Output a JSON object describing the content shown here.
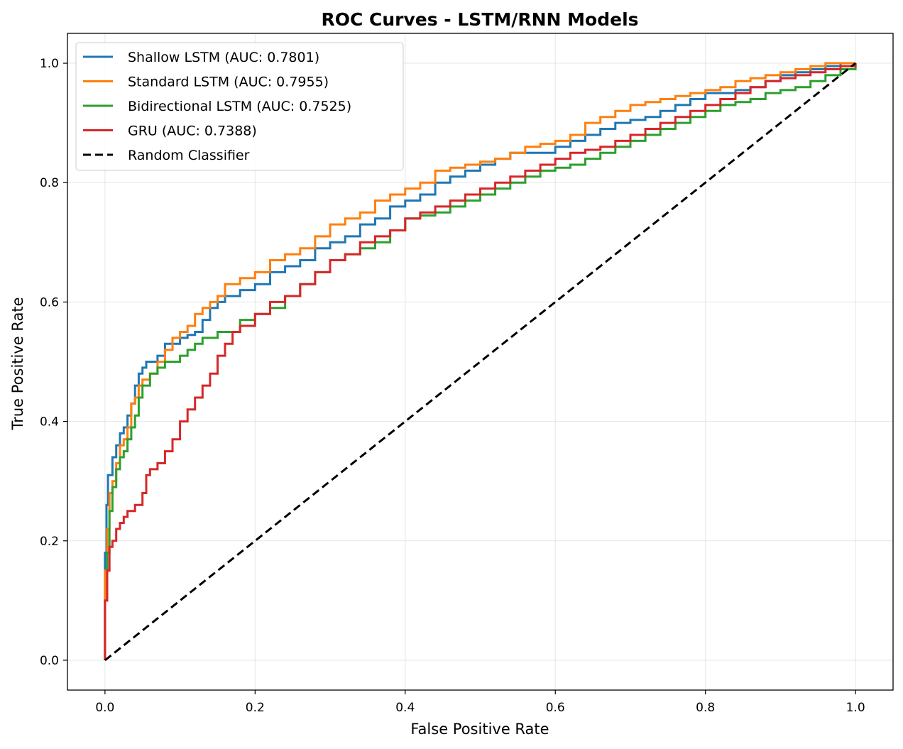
{
  "chart_data": {
    "type": "line",
    "title": "ROC Curves - LSTM/RNN Models",
    "xlabel": "False Positive Rate",
    "ylabel": "True Positive Rate",
    "xlim": [
      -0.05,
      1.05
    ],
    "ylim": [
      -0.05,
      1.05
    ],
    "xticks": [
      0.0,
      0.2,
      0.4,
      0.6,
      0.8,
      1.0
    ],
    "yticks": [
      0.0,
      0.2,
      0.4,
      0.6,
      0.8,
      1.0
    ],
    "xtick_labels": [
      "0.0",
      "0.2",
      "0.4",
      "0.6",
      "0.8",
      "1.0"
    ],
    "ytick_labels": [
      "0.0",
      "0.2",
      "0.4",
      "0.6",
      "0.8",
      "1.0"
    ],
    "grid": true,
    "legend_position": "top-left",
    "series": [
      {
        "name": "Shallow LSTM (AUC: 0.7801)",
        "color": "#1f77b4",
        "x": [
          0.0,
          0.0,
          0.002,
          0.004,
          0.006,
          0.01,
          0.015,
          0.02,
          0.025,
          0.03,
          0.035,
          0.04,
          0.045,
          0.05,
          0.055,
          0.06,
          0.07,
          0.08,
          0.09,
          0.1,
          0.11,
          0.12,
          0.13,
          0.14,
          0.15,
          0.16,
          0.18,
          0.2,
          0.22,
          0.24,
          0.26,
          0.28,
          0.3,
          0.32,
          0.34,
          0.36,
          0.38,
          0.4,
          0.42,
          0.44,
          0.46,
          0.48,
          0.5,
          0.52,
          0.54,
          0.56,
          0.58,
          0.6,
          0.62,
          0.64,
          0.66,
          0.68,
          0.7,
          0.72,
          0.74,
          0.76,
          0.78,
          0.8,
          0.82,
          0.84,
          0.86,
          0.88,
          0.9,
          0.92,
          0.94,
          0.96,
          0.98,
          1.0
        ],
        "y": [
          0.0,
          0.18,
          0.26,
          0.31,
          0.31,
          0.34,
          0.36,
          0.38,
          0.39,
          0.41,
          0.43,
          0.46,
          0.48,
          0.49,
          0.5,
          0.5,
          0.51,
          0.53,
          0.53,
          0.54,
          0.545,
          0.55,
          0.57,
          0.59,
          0.6,
          0.61,
          0.62,
          0.63,
          0.65,
          0.66,
          0.67,
          0.69,
          0.7,
          0.71,
          0.73,
          0.74,
          0.76,
          0.77,
          0.78,
          0.8,
          0.81,
          0.82,
          0.83,
          0.84,
          0.85,
          0.85,
          0.85,
          0.86,
          0.87,
          0.88,
          0.89,
          0.9,
          0.905,
          0.91,
          0.92,
          0.93,
          0.94,
          0.95,
          0.95,
          0.955,
          0.96,
          0.97,
          0.98,
          0.985,
          0.99,
          0.995,
          1.0,
          1.0
        ]
      },
      {
        "name": "Standard LSTM (AUC: 0.7955)",
        "color": "#ff7f0e",
        "x": [
          0.0,
          0.0,
          0.003,
          0.006,
          0.01,
          0.015,
          0.02,
          0.025,
          0.03,
          0.035,
          0.04,
          0.045,
          0.05,
          0.06,
          0.07,
          0.08,
          0.09,
          0.1,
          0.11,
          0.12,
          0.13,
          0.14,
          0.15,
          0.16,
          0.18,
          0.2,
          0.22,
          0.24,
          0.26,
          0.28,
          0.3,
          0.32,
          0.34,
          0.36,
          0.38,
          0.4,
          0.42,
          0.44,
          0.46,
          0.48,
          0.5,
          0.52,
          0.54,
          0.56,
          0.58,
          0.6,
          0.62,
          0.64,
          0.66,
          0.68,
          0.7,
          0.72,
          0.74,
          0.76,
          0.78,
          0.8,
          0.82,
          0.84,
          0.86,
          0.88,
          0.9,
          0.92,
          0.94,
          0.96,
          0.98,
          1.0
        ],
        "y": [
          0.0,
          0.15,
          0.22,
          0.28,
          0.3,
          0.33,
          0.36,
          0.37,
          0.39,
          0.43,
          0.44,
          0.46,
          0.47,
          0.48,
          0.5,
          0.52,
          0.54,
          0.55,
          0.56,
          0.58,
          0.59,
          0.6,
          0.61,
          0.63,
          0.64,
          0.65,
          0.67,
          0.68,
          0.69,
          0.71,
          0.73,
          0.74,
          0.75,
          0.77,
          0.78,
          0.79,
          0.8,
          0.82,
          0.825,
          0.83,
          0.835,
          0.84,
          0.85,
          0.86,
          0.865,
          0.87,
          0.88,
          0.9,
          0.91,
          0.92,
          0.93,
          0.935,
          0.94,
          0.945,
          0.95,
          0.955,
          0.96,
          0.97,
          0.975,
          0.98,
          0.985,
          0.99,
          0.995,
          1.0,
          1.0,
          1.0
        ]
      },
      {
        "name": "Bidirectional LSTM (AUC: 0.7525)",
        "color": "#2ca02c",
        "x": [
          0.0,
          0.0,
          0.003,
          0.006,
          0.01,
          0.015,
          0.02,
          0.025,
          0.03,
          0.035,
          0.04,
          0.045,
          0.05,
          0.06,
          0.07,
          0.08,
          0.09,
          0.1,
          0.11,
          0.12,
          0.13,
          0.14,
          0.15,
          0.16,
          0.18,
          0.2,
          0.22,
          0.24,
          0.26,
          0.28,
          0.3,
          0.32,
          0.34,
          0.36,
          0.38,
          0.4,
          0.42,
          0.44,
          0.46,
          0.48,
          0.5,
          0.52,
          0.54,
          0.56,
          0.58,
          0.6,
          0.62,
          0.64,
          0.66,
          0.68,
          0.7,
          0.72,
          0.74,
          0.76,
          0.78,
          0.8,
          0.82,
          0.84,
          0.86,
          0.88,
          0.9,
          0.92,
          0.94,
          0.96,
          0.98,
          1.0
        ],
        "y": [
          0.0,
          0.1,
          0.18,
          0.25,
          0.29,
          0.32,
          0.34,
          0.35,
          0.37,
          0.39,
          0.41,
          0.44,
          0.46,
          0.48,
          0.49,
          0.5,
          0.5,
          0.51,
          0.52,
          0.53,
          0.54,
          0.54,
          0.55,
          0.55,
          0.57,
          0.58,
          0.59,
          0.61,
          0.63,
          0.65,
          0.67,
          0.68,
          0.69,
          0.7,
          0.72,
          0.74,
          0.745,
          0.75,
          0.76,
          0.77,
          0.78,
          0.79,
          0.8,
          0.81,
          0.82,
          0.825,
          0.83,
          0.84,
          0.85,
          0.86,
          0.87,
          0.88,
          0.89,
          0.9,
          0.91,
          0.92,
          0.93,
          0.935,
          0.94,
          0.95,
          0.955,
          0.96,
          0.97,
          0.98,
          0.99,
          1.0
        ]
      },
      {
        "name": "GRU (AUC: 0.7388)",
        "color": "#d62728",
        "x": [
          0.0,
          0.0,
          0.003,
          0.006,
          0.01,
          0.015,
          0.02,
          0.025,
          0.03,
          0.04,
          0.05,
          0.055,
          0.06,
          0.07,
          0.08,
          0.09,
          0.1,
          0.11,
          0.12,
          0.13,
          0.14,
          0.15,
          0.16,
          0.17,
          0.18,
          0.2,
          0.22,
          0.24,
          0.26,
          0.28,
          0.3,
          0.32,
          0.34,
          0.36,
          0.38,
          0.4,
          0.42,
          0.44,
          0.46,
          0.48,
          0.5,
          0.52,
          0.54,
          0.56,
          0.58,
          0.6,
          0.62,
          0.64,
          0.66,
          0.68,
          0.7,
          0.72,
          0.74,
          0.76,
          0.78,
          0.8,
          0.82,
          0.84,
          0.86,
          0.88,
          0.9,
          0.92,
          0.94,
          0.96,
          0.98,
          1.0
        ],
        "y": [
          0.0,
          0.1,
          0.15,
          0.19,
          0.2,
          0.22,
          0.23,
          0.24,
          0.25,
          0.26,
          0.28,
          0.31,
          0.32,
          0.33,
          0.35,
          0.37,
          0.4,
          0.42,
          0.44,
          0.46,
          0.48,
          0.51,
          0.53,
          0.55,
          0.56,
          0.58,
          0.6,
          0.61,
          0.63,
          0.65,
          0.67,
          0.68,
          0.7,
          0.71,
          0.72,
          0.74,
          0.75,
          0.76,
          0.77,
          0.78,
          0.79,
          0.8,
          0.81,
          0.82,
          0.83,
          0.84,
          0.85,
          0.855,
          0.86,
          0.87,
          0.88,
          0.89,
          0.9,
          0.91,
          0.92,
          0.93,
          0.94,
          0.95,
          0.96,
          0.97,
          0.975,
          0.98,
          0.985,
          0.99,
          0.995,
          1.0
        ]
      },
      {
        "name": "Random Classifier",
        "color": "#000000",
        "dashed": true,
        "x": [
          0.0,
          1.0
        ],
        "y": [
          0.0,
          1.0
        ]
      }
    ]
  }
}
